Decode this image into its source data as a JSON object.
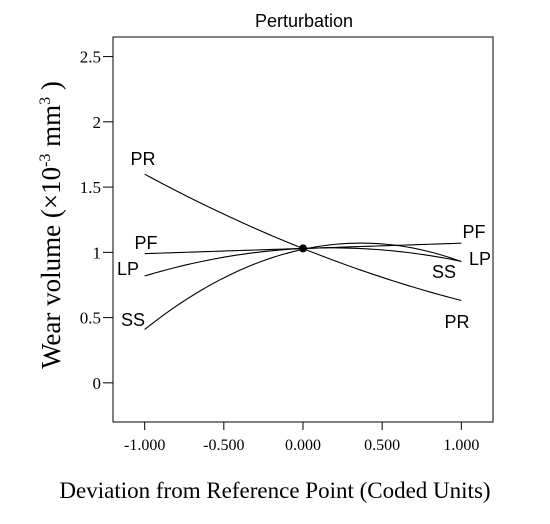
{
  "chart_data": {
    "type": "line",
    "title": "Perturbation",
    "xlabel": "Deviation from Reference Point (Coded Units)",
    "ylabel": {
      "prefix": "Wear volume (×10",
      "exponent": "-3",
      "suffix": " mm",
      "suffix_exponent": "3",
      "close": " )"
    },
    "xlim": [
      -1.2,
      1.2
    ],
    "ylim": [
      -0.3,
      2.65
    ],
    "x_ticks": [
      "-1.000",
      "-0.500",
      "0.000",
      "0.500",
      "1.000"
    ],
    "x_tick_values": [
      -1,
      -0.5,
      0,
      0.5,
      1
    ],
    "y_ticks": [
      "0",
      "0.5",
      "1",
      "1.5",
      "2",
      "2.5"
    ],
    "y_tick_values": [
      0,
      0.5,
      1,
      1.5,
      2,
      2.5
    ],
    "reference_point": {
      "x": 0,
      "y": 1.03
    },
    "series": [
      {
        "name": "PR",
        "x": [
          -1,
          -0.5,
          0,
          0.5,
          1
        ],
        "y": [
          1.6,
          1.29,
          1.03,
          0.81,
          0.63
        ]
      },
      {
        "name": "PF",
        "x": [
          -1,
          -0.5,
          0,
          0.5,
          1
        ],
        "y": [
          0.99,
          1.01,
          1.03,
          1.05,
          1.07
        ]
      },
      {
        "name": "LP",
        "x": [
          -1,
          -0.5,
          0,
          0.5,
          1
        ],
        "y": [
          0.82,
          0.96,
          1.03,
          1.02,
          0.93
        ]
      },
      {
        "name": "SS",
        "x": [
          -1,
          -0.5,
          0,
          0.5,
          1
        ],
        "y": [
          0.41,
          0.8,
          1.03,
          1.06,
          0.93
        ]
      }
    ]
  }
}
